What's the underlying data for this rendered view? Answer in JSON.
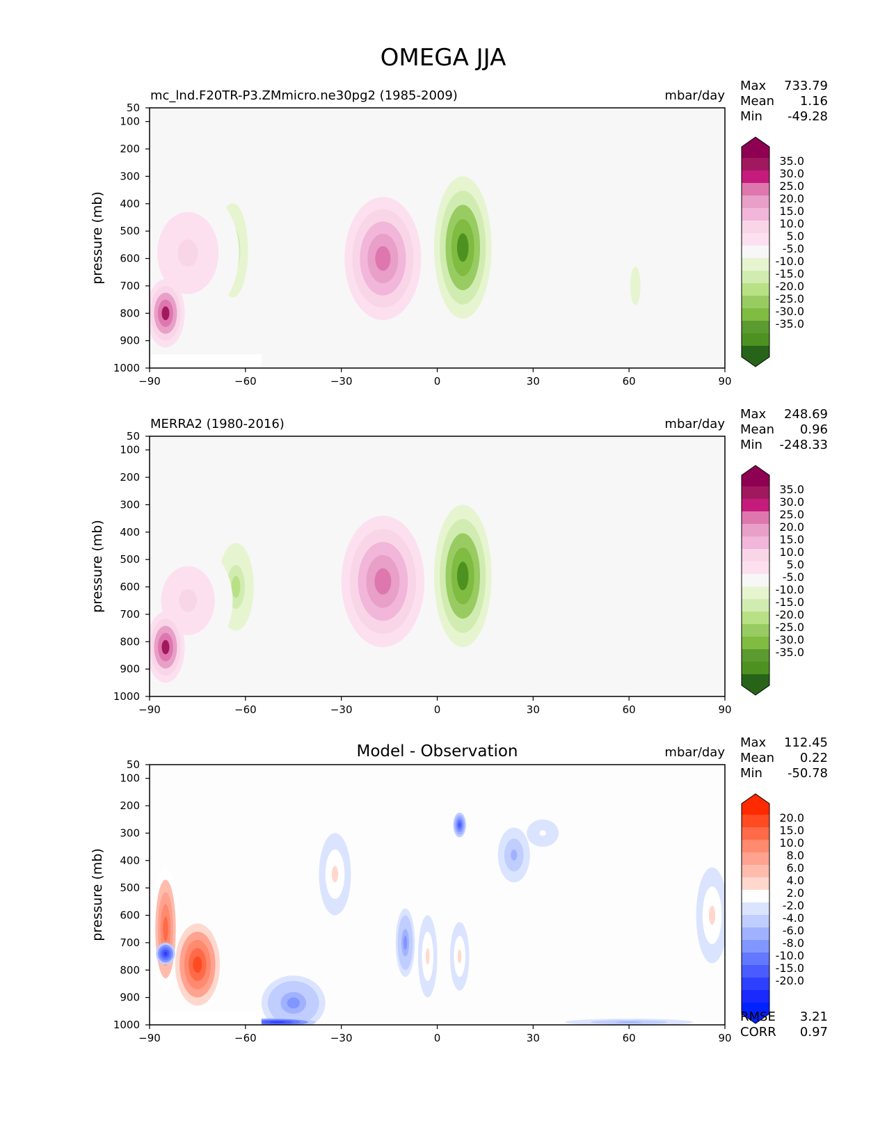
{
  "figure_title": "OMEGA JJA",
  "chart_data": [
    {
      "type": "heatmap",
      "title": "mc_lnd.F20TR-P3.ZMmicro.ne30pg2 (1985-2009)",
      "units": "mbar/day",
      "xlabel": "",
      "ylabel": "pressure (mb)",
      "xlim": [
        -90,
        90
      ],
      "ylim": [
        1000,
        50
      ],
      "xticks": [
        "−90",
        "−60",
        "−30",
        "0",
        "30",
        "60",
        "90"
      ],
      "yticks": [
        "50",
        "100",
        "200",
        "300",
        "400",
        "500",
        "600",
        "700",
        "800",
        "900",
        "1000"
      ],
      "stats": {
        "max_label": "Max",
        "max": "733.79",
        "mean_label": "Mean",
        "mean": "1.16",
        "min_label": "Min",
        "min": "-49.28"
      },
      "colorbar": {
        "labels": [
          "35.0",
          "30.0",
          "25.0",
          "20.0",
          "15.0",
          "10.0",
          "5.0",
          "-5.0",
          "-10.0",
          "-15.0",
          "-20.0",
          "-25.0",
          "-30.0",
          "-35.0"
        ],
        "colors": [
          "#8e0152",
          "#a0195e",
          "#c51b7d",
          "#de77ae",
          "#e89fc8",
          "#f1b6da",
          "#f8d6e8",
          "#fde0ef",
          "#f7f7f7",
          "#e6f5d0",
          "#d1ecb1",
          "#b8e186",
          "#98cc62",
          "#7fbc41",
          "#5c9b2f",
          "#4d9221",
          "#276419"
        ]
      },
      "features": [
        {
          "lat": -17,
          "p": 600,
          "lat_w": 12,
          "p_h": 450,
          "value": 25,
          "shape": "ellipse"
        },
        {
          "lat": 8,
          "p": 560,
          "lat_w": 9,
          "p_h": 520,
          "value": -35,
          "shape": "ellipse"
        },
        {
          "lat": -64,
          "p": 570,
          "lat_w": 6,
          "p_h": 430,
          "value": -15,
          "shape": "ellipse"
        },
        {
          "lat": -78,
          "p": 580,
          "lat_w": 16,
          "p_h": 500,
          "value": 10,
          "shape": "ellipse"
        },
        {
          "lat": -85,
          "p": 800,
          "lat_w": 6,
          "p_h": 250,
          "value": 35,
          "shape": "ellipse"
        },
        {
          "lat": 62,
          "p": 700,
          "lat_w": 4,
          "p_h": 350,
          "value": -7,
          "shape": "ellipse"
        }
      ]
    },
    {
      "type": "heatmap",
      "title": "MERRA2 (1980-2016)",
      "units": "mbar/day",
      "xlabel": "",
      "ylabel": "pressure (mb)",
      "xlim": [
        -90,
        90
      ],
      "ylim": [
        1000,
        50
      ],
      "xticks": [
        "−90",
        "−60",
        "−30",
        "0",
        "30",
        "60",
        "90"
      ],
      "yticks": [
        "50",
        "100",
        "200",
        "300",
        "400",
        "500",
        "600",
        "700",
        "800",
        "900",
        "1000"
      ],
      "stats": {
        "max_label": "Max",
        "max": "248.69",
        "mean_label": "Mean",
        "mean": "0.96",
        "min_label": "Min",
        "min": "-248.33"
      },
      "colorbar": {
        "labels": [
          "35.0",
          "30.0",
          "25.0",
          "20.0",
          "15.0",
          "10.0",
          "5.0",
          "-5.0",
          "-10.0",
          "-15.0",
          "-20.0",
          "-25.0",
          "-30.0",
          "-35.0"
        ],
        "colors": [
          "#8e0152",
          "#a0195e",
          "#c51b7d",
          "#de77ae",
          "#e89fc8",
          "#f1b6da",
          "#f8d6e8",
          "#fde0ef",
          "#f7f7f7",
          "#e6f5d0",
          "#d1ecb1",
          "#b8e186",
          "#98cc62",
          "#7fbc41",
          "#5c9b2f",
          "#4d9221",
          "#276419"
        ]
      },
      "features": [
        {
          "lat": -17,
          "p": 580,
          "lat_w": 13,
          "p_h": 480,
          "value": 25,
          "shape": "ellipse"
        },
        {
          "lat": 8,
          "p": 560,
          "lat_w": 9,
          "p_h": 520,
          "value": -35,
          "shape": "ellipse"
        },
        {
          "lat": -63,
          "p": 600,
          "lat_w": 7,
          "p_h": 400,
          "value": -15,
          "shape": "ellipse"
        },
        {
          "lat": -78,
          "p": 650,
          "lat_w": 14,
          "p_h": 420,
          "value": 10,
          "shape": "ellipse"
        },
        {
          "lat": -85,
          "p": 820,
          "lat_w": 6,
          "p_h": 260,
          "value": 35,
          "shape": "ellipse"
        }
      ]
    },
    {
      "type": "heatmap",
      "title": "Model - Observation",
      "units": "mbar/day",
      "xlabel": "",
      "ylabel": "pressure (mb)",
      "xlim": [
        -90,
        90
      ],
      "ylim": [
        1000,
        50
      ],
      "xticks": [
        "−90",
        "−60",
        "−30",
        "0",
        "30",
        "60",
        "90"
      ],
      "yticks": [
        "50",
        "100",
        "200",
        "300",
        "400",
        "500",
        "600",
        "700",
        "800",
        "900",
        "1000"
      ],
      "stats": {
        "max_label": "Max",
        "max": "112.45",
        "mean_label": "Mean",
        "mean": "0.22",
        "min_label": "Min",
        "min": "-50.78"
      },
      "metrics": {
        "rmse_label": "RMSE",
        "rmse": "3.21",
        "corr_label": "CORR",
        "corr": "0.97"
      },
      "colorbar": {
        "labels": [
          "20.0",
          "15.0",
          "10.0",
          "8.0",
          "6.0",
          "4.0",
          "2.0",
          "-2.0",
          "-4.0",
          "-6.0",
          "-8.0",
          "-10.0",
          "-15.0",
          "-20.0"
        ],
        "colors": [
          "#ff2a00",
          "#ff4a22",
          "#ff6a48",
          "#ff8a6e",
          "#ffa290",
          "#ffbcad",
          "#ffd8cd",
          "#ffffff",
          "#dbe4ff",
          "#bfcdff",
          "#a0b2ff",
          "#8296ff",
          "#6478ff",
          "#4a5cff",
          "#2e40ff",
          "#1a2aff",
          "#0022ff"
        ]
      },
      "features": [
        {
          "lat": -85,
          "p": 650,
          "lat_w": 4,
          "p_h": 450,
          "value": 15,
          "shape": "ellipse"
        },
        {
          "lat": -75,
          "p": 780,
          "lat_w": 7,
          "p_h": 300,
          "value": 20,
          "shape": "ellipse"
        },
        {
          "lat": -85,
          "p": 740,
          "lat_w": 3,
          "p_h": 80,
          "value": -15,
          "shape": "ellipse"
        },
        {
          "lat": -45,
          "p": 920,
          "lat_w": 10,
          "p_h": 200,
          "value": -6,
          "shape": "ellipse"
        },
        {
          "lat": -50,
          "p": 990,
          "lat_w": 12,
          "p_h": 30,
          "value": -15,
          "shape": "ellipse"
        },
        {
          "lat": -32,
          "p": 450,
          "lat_w": 5,
          "p_h": 300,
          "value": 4,
          "shape": "ellipse"
        },
        {
          "lat": -10,
          "p": 700,
          "lat_w": 3,
          "p_h": 250,
          "value": -6,
          "shape": "ellipse"
        },
        {
          "lat": -3,
          "p": 750,
          "lat_w": 3,
          "p_h": 300,
          "value": 4,
          "shape": "ellipse"
        },
        {
          "lat": 7,
          "p": 270,
          "lat_w": 2,
          "p_h": 90,
          "value": -10,
          "shape": "ellipse"
        },
        {
          "lat": 7,
          "p": 750,
          "lat_w": 3,
          "p_h": 250,
          "value": 4,
          "shape": "ellipse"
        },
        {
          "lat": 24,
          "p": 380,
          "lat_w": 5,
          "p_h": 200,
          "value": -4,
          "shape": "ellipse"
        },
        {
          "lat": 33,
          "p": 300,
          "lat_w": 5,
          "p_h": 100,
          "value": 2,
          "shape": "ellipse"
        },
        {
          "lat": 60,
          "p": 990,
          "lat_w": 20,
          "p_h": 25,
          "value": -4,
          "shape": "ellipse"
        },
        {
          "lat": 86,
          "p": 600,
          "lat_w": 5,
          "p_h": 350,
          "value": 4,
          "shape": "ellipse"
        }
      ]
    }
  ]
}
